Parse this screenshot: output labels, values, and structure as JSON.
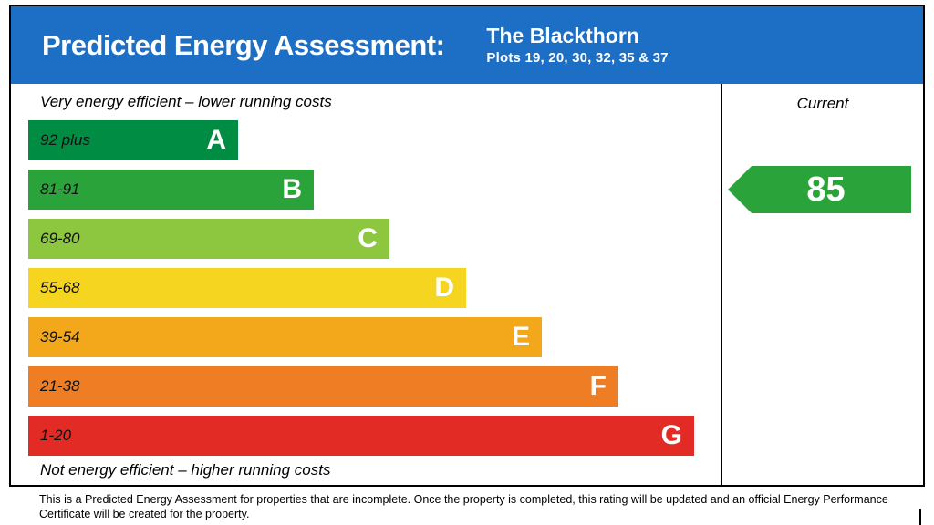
{
  "colors": {
    "header_blue": "#1c6fc4",
    "border_black": "#000000"
  },
  "header": {
    "title": "Predicted Energy Assessment:",
    "property_name": "The Blackthorn",
    "plots": "Plots 19, 20, 30, 32, 35 & 37"
  },
  "chart": {
    "top_caption": "Very energy efficient – lower running costs",
    "bottom_caption": "Not energy efficient – higher running costs",
    "current_header": "Current",
    "bands": [
      {
        "range": "92 plus",
        "letter": "A",
        "color": "#018c43"
      },
      {
        "range": "81-91",
        "letter": "B",
        "color": "#2aa43a"
      },
      {
        "range": "69-80",
        "letter": "C",
        "color": "#8dc63f"
      },
      {
        "range": "55-68",
        "letter": "D",
        "color": "#f5d520"
      },
      {
        "range": "39-54",
        "letter": "E",
        "color": "#f3a81c"
      },
      {
        "range": "21-38",
        "letter": "F",
        "color": "#ee7d23"
      },
      {
        "range": "1-20",
        "letter": "G",
        "color": "#e32b25"
      }
    ],
    "current_rating": {
      "value": "85",
      "band": "B",
      "color": "#2aa43a"
    }
  },
  "chart_data": {
    "type": "bar",
    "title": "Predicted Energy Assessment: The Blackthorn",
    "categories": [
      "A",
      "B",
      "C",
      "D",
      "E",
      "F",
      "G"
    ],
    "band_ranges": [
      "92 plus",
      "81-91",
      "69-80",
      "55-68",
      "39-54",
      "21-38",
      "1-20"
    ],
    "series": [
      {
        "name": "Current",
        "values": [
          85
        ]
      }
    ],
    "current_rating": 85,
    "current_band": "B",
    "annotations": [
      "Very energy efficient – lower running costs",
      "Not energy efficient – higher running costs"
    ],
    "legend_position": "right column labelled Current"
  },
  "footer": {
    "disclaimer": "This is a Predicted Energy Assessment for properties that are incomplete. Once the property is completed, this rating will be updated and an official Energy Performance Certificate will be created for the property."
  }
}
